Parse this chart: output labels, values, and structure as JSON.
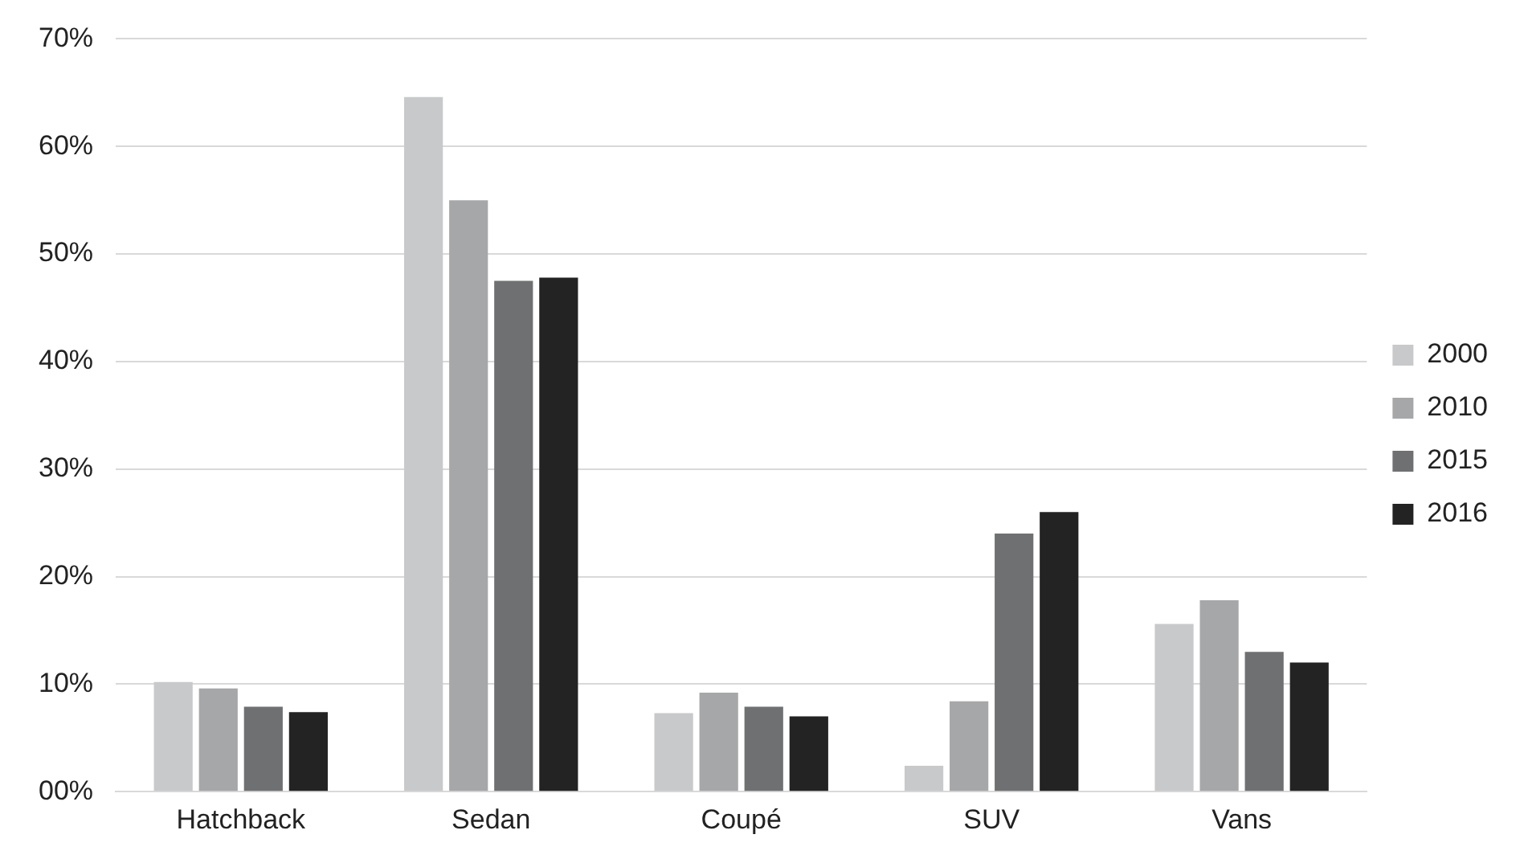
{
  "chart_data": {
    "type": "bar",
    "categories": [
      "Hatchback",
      "Sedan",
      "Coupé",
      "SUV",
      "Vans"
    ],
    "series": [
      {
        "name": "2000",
        "color": "#c8c9ca",
        "values": [
          10.2,
          64.6,
          7.3,
          2.4,
          15.6
        ]
      },
      {
        "name": "2010",
        "color": "#a6a7a9",
        "values": [
          9.6,
          55,
          9.2,
          8.4,
          17.8
        ]
      },
      {
        "name": "2015",
        "color": "#6f7072",
        "values": [
          7.9,
          47.5,
          7.9,
          24,
          13
        ]
      },
      {
        "name": "2016",
        "color": "#232323",
        "values": [
          7.4,
          47.8,
          7,
          26,
          12
        ]
      }
    ],
    "ylim": [
      0,
      70
    ],
    "yticks": [
      {
        "value": 0,
        "label": "00%"
      },
      {
        "value": 10,
        "label": "10%"
      },
      {
        "value": 20,
        "label": "20%"
      },
      {
        "value": 30,
        "label": "30%"
      },
      {
        "value": 40,
        "label": "40%"
      },
      {
        "value": 50,
        "label": "50%"
      },
      {
        "value": 60,
        "label": "60%"
      },
      {
        "value": 70,
        "label": "70%"
      }
    ],
    "grid": "y",
    "legend": "right"
  }
}
